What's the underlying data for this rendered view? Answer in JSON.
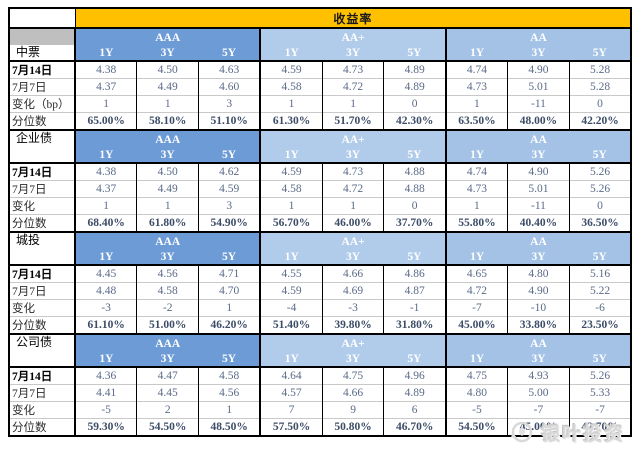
{
  "title": "收益率",
  "ratings": [
    "AAA",
    "AA+",
    "AA"
  ],
  "tenors": [
    "1Y",
    "3Y",
    "5Y"
  ],
  "sections": [
    {
      "name": "中票",
      "rows": [
        {
          "label": "7月14日",
          "values": [
            "4.38",
            "4.50",
            "4.63",
            "4.59",
            "4.73",
            "4.89",
            "4.74",
            "4.90",
            "5.28"
          ]
        },
        {
          "label": "7月7日",
          "values": [
            "4.37",
            "4.49",
            "4.60",
            "4.58",
            "4.72",
            "4.89",
            "4.73",
            "5.01",
            "5.28"
          ]
        },
        {
          "label": "变化（bp）",
          "values": [
            "1",
            "1",
            "3",
            "1",
            "1",
            "0",
            "1",
            "-11",
            "0"
          ]
        },
        {
          "label": "分位数",
          "values": [
            "65.00%",
            "58.10%",
            "51.10%",
            "61.30%",
            "51.70%",
            "42.30%",
            "63.50%",
            "48.00%",
            "42.20%"
          ]
        }
      ]
    },
    {
      "name": "企业债",
      "rows": [
        {
          "label": "7月14日",
          "values": [
            "4.38",
            "4.50",
            "4.62",
            "4.59",
            "4.73",
            "4.88",
            "4.74",
            "4.90",
            "5.26"
          ]
        },
        {
          "label": "7月7日",
          "values": [
            "4.37",
            "4.49",
            "4.59",
            "4.58",
            "4.72",
            "4.88",
            "4.73",
            "5.01",
            "5.26"
          ]
        },
        {
          "label": "变化",
          "values": [
            "1",
            "1",
            "3",
            "1",
            "1",
            "0",
            "1",
            "-11",
            "0"
          ]
        },
        {
          "label": "分位数",
          "values": [
            "68.40%",
            "61.80%",
            "54.90%",
            "56.70%",
            "46.00%",
            "37.70%",
            "55.80%",
            "40.40%",
            "36.50%"
          ]
        }
      ]
    },
    {
      "name": "城投",
      "rows": [
        {
          "label": "7月14日",
          "values": [
            "4.45",
            "4.56",
            "4.71",
            "4.55",
            "4.66",
            "4.86",
            "4.65",
            "4.80",
            "5.16"
          ]
        },
        {
          "label": "7月7日",
          "values": [
            "4.48",
            "4.58",
            "4.70",
            "4.59",
            "4.69",
            "4.87",
            "4.72",
            "4.90",
            "5.22"
          ]
        },
        {
          "label": "变化",
          "values": [
            "-3",
            "-2",
            "1",
            "-4",
            "-3",
            "-1",
            "-7",
            "-10",
            "-6"
          ]
        },
        {
          "label": "分位数",
          "values": [
            "61.10%",
            "51.00%",
            "46.20%",
            "51.40%",
            "39.80%",
            "31.80%",
            "45.00%",
            "33.80%",
            "23.50%"
          ]
        }
      ]
    },
    {
      "name": "公司债",
      "rows": [
        {
          "label": "7月14日",
          "values": [
            "4.36",
            "4.47",
            "4.58",
            "4.64",
            "4.75",
            "4.96",
            "4.75",
            "4.93",
            "5.26"
          ]
        },
        {
          "label": "7月7日",
          "values": [
            "4.41",
            "4.45",
            "4.56",
            "4.57",
            "4.66",
            "4.89",
            "4.80",
            "5.00",
            "5.33"
          ]
        },
        {
          "label": "变化",
          "values": [
            "-5",
            "2",
            "1",
            "7",
            "9",
            "6",
            "-5",
            "-7",
            "-7"
          ]
        },
        {
          "label": "分位数",
          "values": [
            "59.30%",
            "54.50%",
            "48.50%",
            "57.50%",
            "50.80%",
            "46.70%",
            "54.50%",
            "45.00%",
            "42.70%"
          ]
        }
      ]
    }
  ],
  "watermark": {
    "text": "银叶投资",
    "icon": "leaf-logo-icon"
  },
  "colors": {
    "title_band": "#FFC000",
    "rating_aaa": "#6D9BD5",
    "rating_aaplus": "#B1CBEA",
    "rating_aa": "#A3C2E5",
    "gray_block": "#BFBFBF",
    "value_text": "#5B6B88",
    "percentile_text": "#3C4C66"
  }
}
